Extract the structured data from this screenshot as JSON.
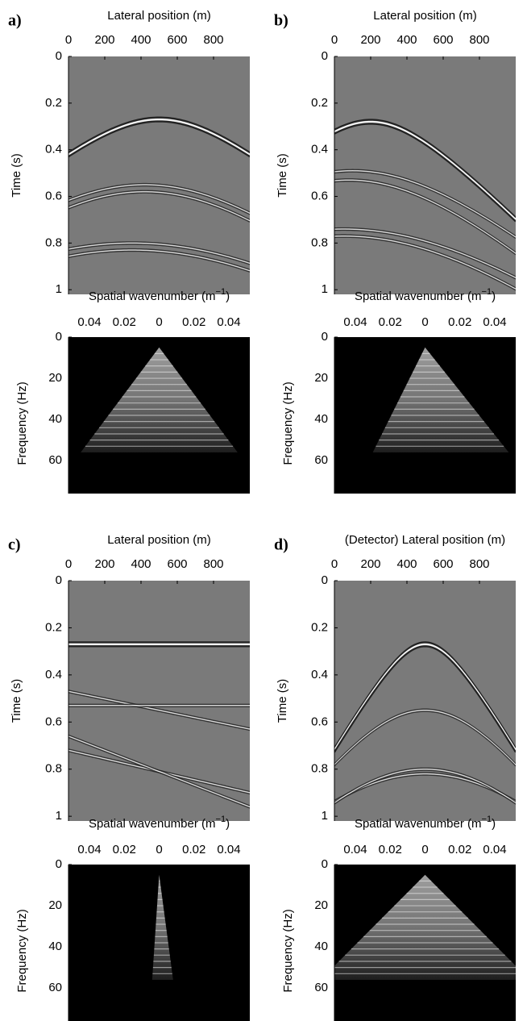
{
  "panels": [
    {
      "label": "a)",
      "seismic": {
        "x_label": "Lateral position (m)",
        "xlim": [
          0,
          1000
        ],
        "xticks": [
          0,
          200,
          400,
          600,
          800
        ],
        "y_label": "Time (s)",
        "ylim": [
          0,
          1.02
        ],
        "yticks": [
          0,
          0.2,
          0.4,
          0.6,
          0.8,
          1
        ]
      },
      "spectrum": {
        "x_label": [
          "Spatial wavenumber (m",
          "−1",
          ")"
        ],
        "xlim": [
          -0.052,
          0.052
        ],
        "xticks": [
          {
            "value": -0.04,
            "label": "0.04"
          },
          {
            "value": -0.02,
            "label": "0.02"
          },
          0,
          0.02,
          0.04
        ],
        "y_label": "Frequency (Hz)",
        "ylim": [
          0,
          76
        ],
        "yticks": [
          0,
          20,
          40,
          60
        ]
      }
    },
    {
      "label": "b)",
      "seismic": {
        "x_label": "Lateral position (m)",
        "xlim": [
          0,
          1000
        ],
        "xticks": [
          0,
          200,
          400,
          600,
          800
        ],
        "y_label": "Time (s)",
        "ylim": [
          0,
          1.02
        ],
        "yticks": [
          0,
          0.2,
          0.4,
          0.6,
          0.8,
          1
        ]
      },
      "spectrum": {
        "x_label": [
          "Spatial wavenumber (m",
          "−1",
          ")"
        ],
        "xlim": [
          -0.052,
          0.052
        ],
        "xticks": [
          {
            "value": -0.04,
            "label": "0.04"
          },
          {
            "value": -0.02,
            "label": "0.02"
          },
          0,
          0.02,
          0.04
        ],
        "y_label": "Frequency (Hz)",
        "ylim": [
          0,
          76
        ],
        "yticks": [
          0,
          20,
          40,
          60
        ]
      }
    },
    {
      "label": "c)",
      "seismic": {
        "x_label": "Lateral position (m)",
        "xlim": [
          0,
          1000
        ],
        "xticks": [
          0,
          200,
          400,
          600,
          800
        ],
        "y_label": "Time (s)",
        "ylim": [
          0,
          1.02
        ],
        "yticks": [
          0,
          0.2,
          0.4,
          0.6,
          0.8,
          1
        ]
      },
      "spectrum": {
        "x_label": [
          "Spatial wavenumber (m",
          "−1",
          ")"
        ],
        "xlim": [
          -0.052,
          0.052
        ],
        "xticks": [
          {
            "value": -0.04,
            "label": "0.04"
          },
          {
            "value": -0.02,
            "label": "0.02"
          },
          0,
          0.02,
          0.04
        ],
        "y_label": "Frequency (Hz)",
        "ylim": [
          0,
          76
        ],
        "yticks": [
          0,
          20,
          40,
          60
        ]
      }
    },
    {
      "label": "d)",
      "seismic": {
        "x_label": "(Detector) Lateral position (m)",
        "xlim": [
          0,
          1000
        ],
        "xticks": [
          0,
          200,
          400,
          600,
          800
        ],
        "y_label": "Time (s)",
        "ylim": [
          0,
          1.02
        ],
        "yticks": [
          0,
          0.2,
          0.4,
          0.6,
          0.8,
          1
        ]
      },
      "spectrum": {
        "x_label": [
          "Spatial wavenumber (m",
          "−1",
          ")"
        ],
        "xlim": [
          -0.052,
          0.052
        ],
        "xticks": [
          {
            "value": -0.04,
            "label": "0.04"
          },
          {
            "value": -0.02,
            "label": "0.02"
          },
          0,
          0.02,
          0.04
        ],
        "y_label": "Frequency (Hz)",
        "ylim": [
          0,
          76
        ],
        "yticks": [
          0,
          20,
          40,
          60
        ]
      }
    }
  ]
}
